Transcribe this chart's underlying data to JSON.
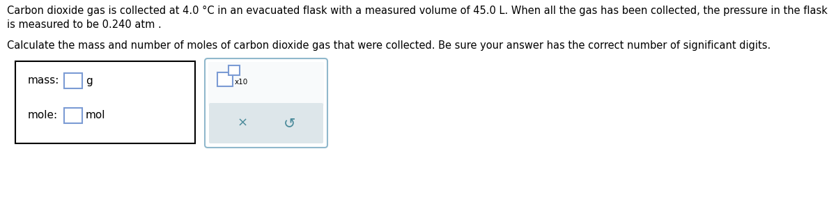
{
  "line1": "Carbon dioxide gas is collected at 4.0 °C in an evacuated flask with a measured volume of 45.0 L. When all the gas has been collected, the pressure in the flask",
  "line2": "is measured to be 0.240 atm .",
  "line3": "Calculate the mass and number of moles of carbon dioxide gas that were collected. Be sure your answer has the correct number of significant digits.",
  "mass_label": "mass:",
  "mole_label": "mole:",
  "g_label": "g",
  "mol_label": "mol",
  "x10_label": "x10",
  "bg_color": "#ffffff",
  "text_color": "#000000",
  "box_border_color": "#000000",
  "input_border_color": "#7b9bd4",
  "panel_border_color": "#90b8cc",
  "button_bg": "#dde6ea",
  "button_text_color": "#4a8a9a",
  "font_size_text": 10.5,
  "font_size_label": 11,
  "font_size_button": 13
}
